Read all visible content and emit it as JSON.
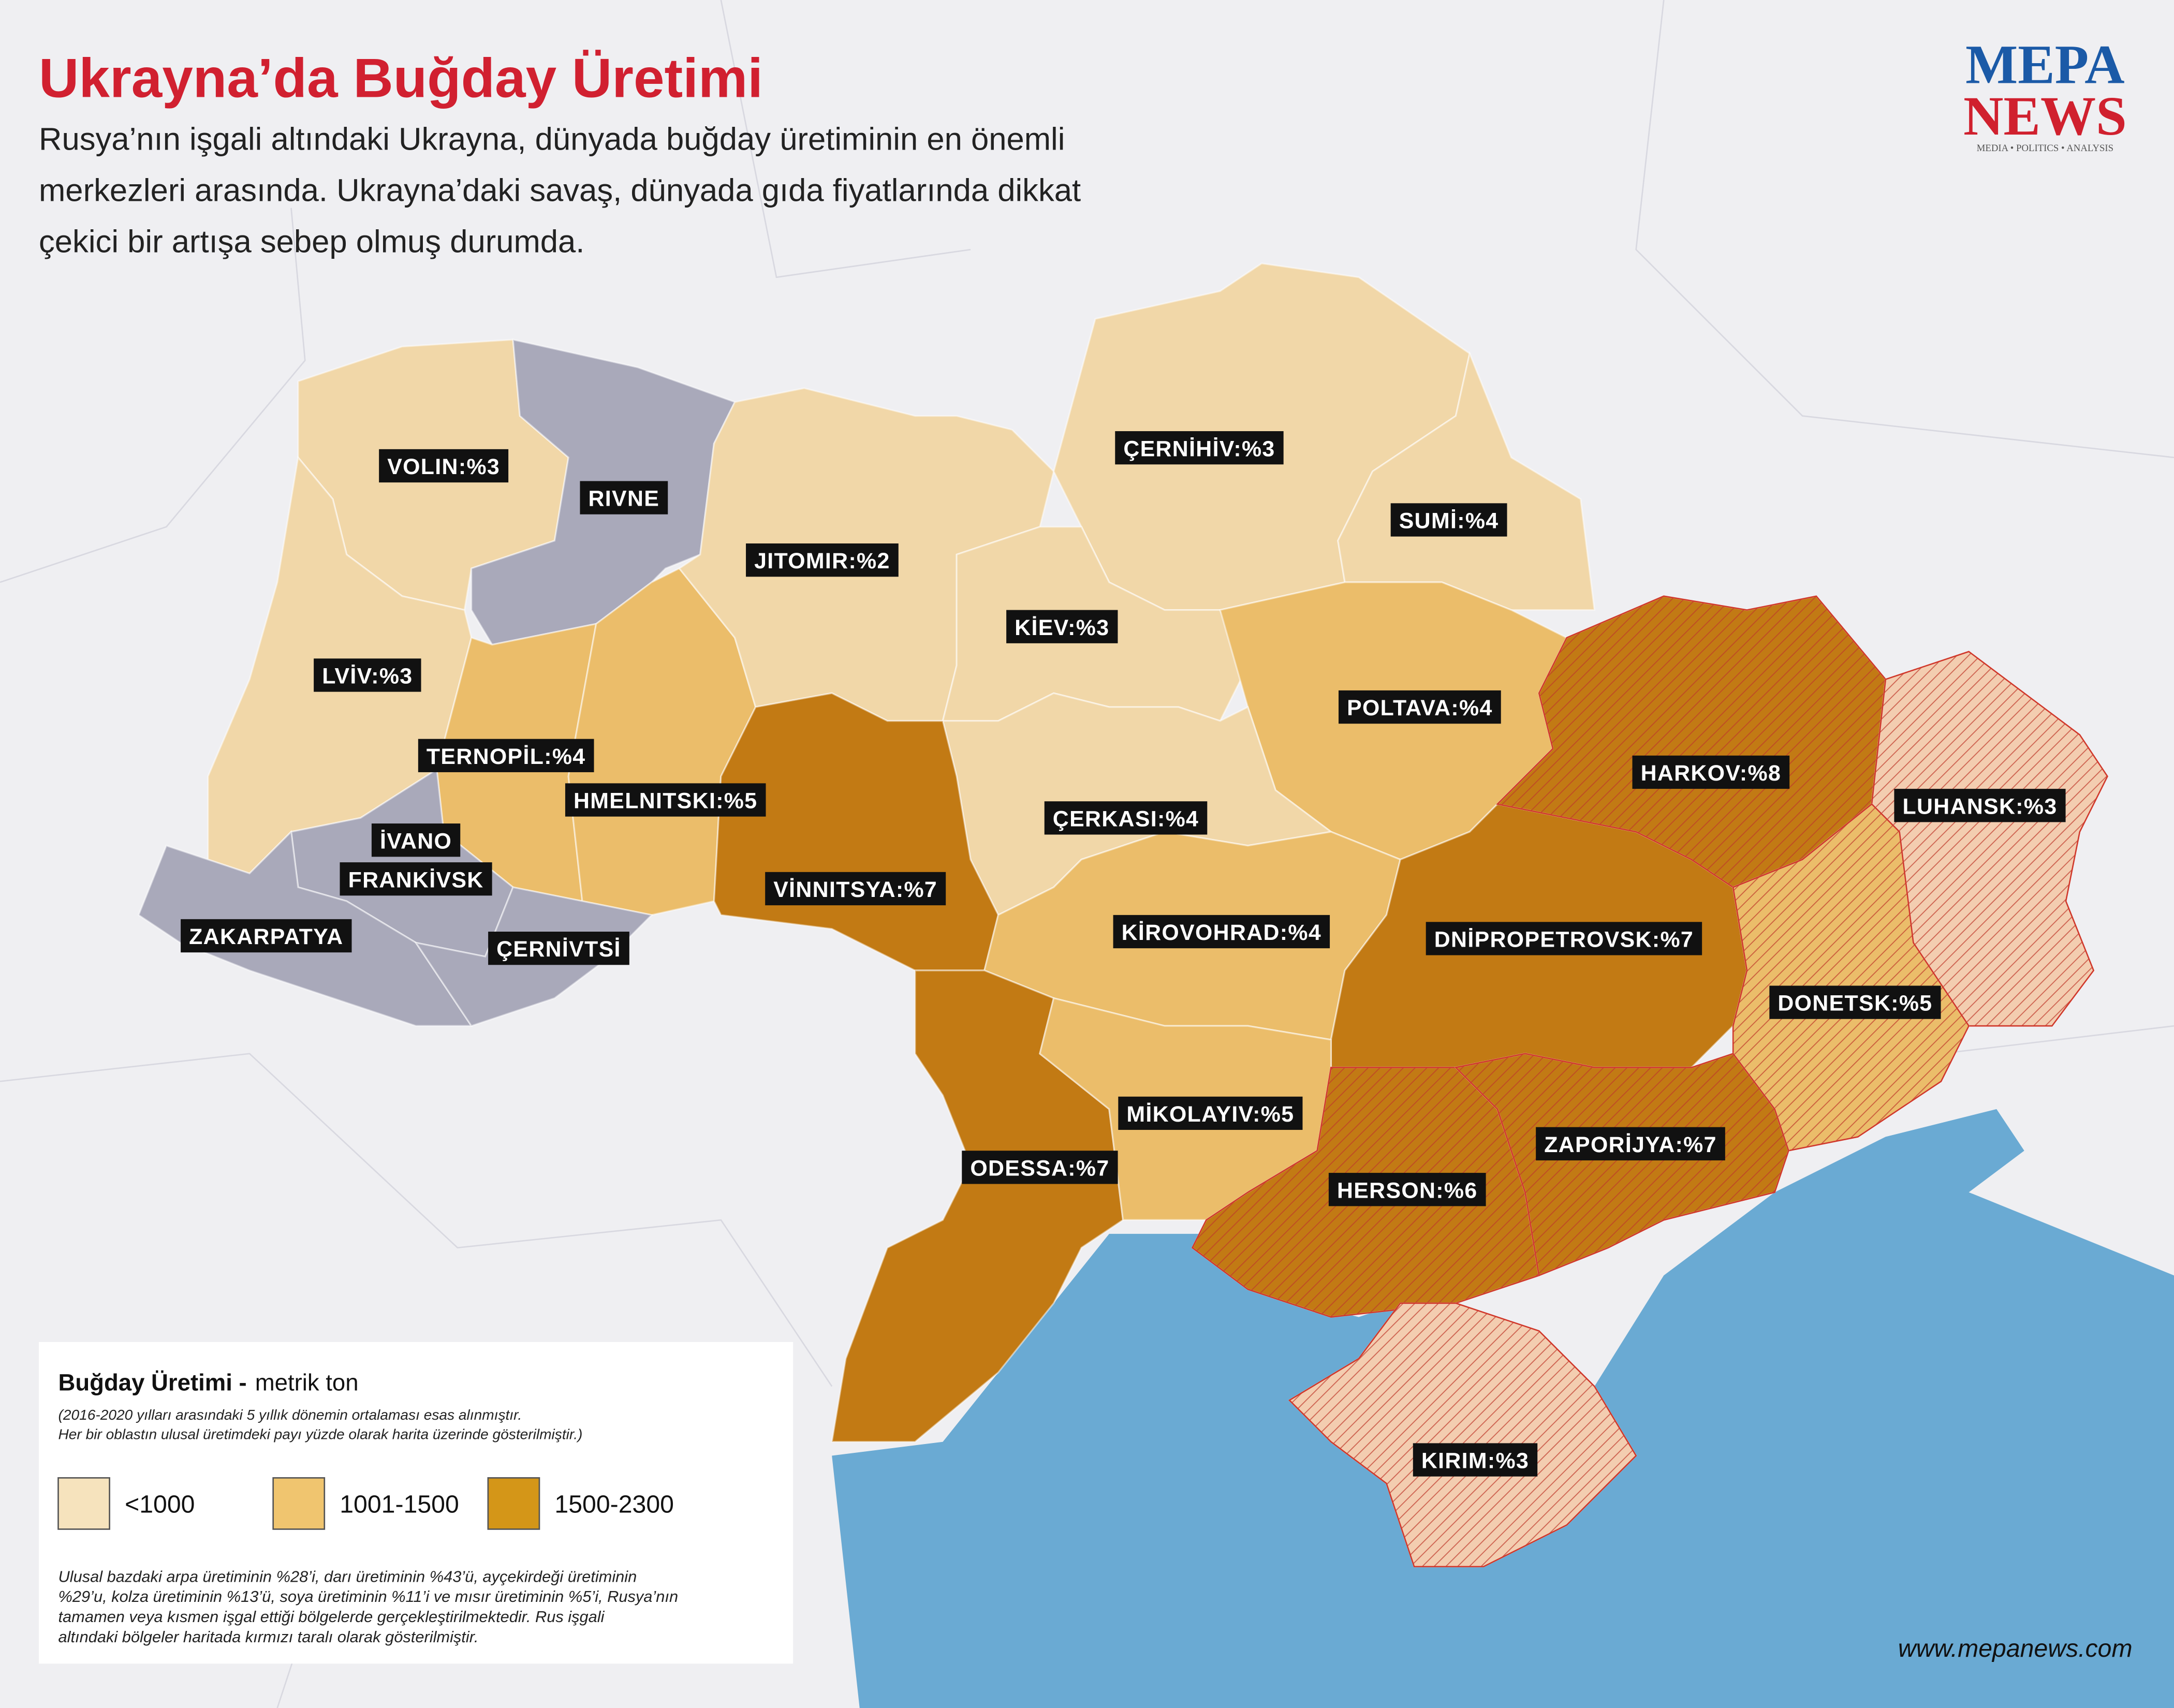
{
  "header": {
    "title": "Ukrayna’da Buğday Üretimi",
    "subtitle": [
      "Rusya’nın işgali altındaki Ukrayna, dünyada buğday üretiminin en önemli",
      "merkezleri arasında. Ukrayna’daki savaş, dünyada gıda fiyatlarında dikkat",
      "çekici bir artışa sebep olmuş durumda."
    ]
  },
  "logo": {
    "top": "MEPA",
    "bottom": "NEWS",
    "tagline": "MEDIA • POLITICS • ANALYSIS"
  },
  "regions": [
    {
      "label": "VOLIN:%3",
      "color": "#f1d7a8",
      "occupied": false
    },
    {
      "label": "RIVNE",
      "color": "#a9a9ba",
      "occupied": false
    },
    {
      "label": "LVİV:%3",
      "color": "#f1d7a8",
      "occupied": false
    },
    {
      "label": "TERNOPİL:%4",
      "color": "#ebbd6a",
      "occupied": false
    },
    {
      "label": "HMELNITSKI:%5",
      "color": "#ebbd6a",
      "occupied": false
    },
    {
      "label": [
        "İVANO",
        "FRANKİVSK"
      ],
      "color": "#a9a9ba",
      "occupied": false
    },
    {
      "label": "ZAKARPATYA",
      "color": "#a9a9ba",
      "occupied": false
    },
    {
      "label": "ÇERNİVTSİ",
      "color": "#a9a9ba",
      "occupied": false
    },
    {
      "label": "JITOMIR:%2",
      "color": "#f1d7a8",
      "occupied": false
    },
    {
      "label": "ÇERNİHİV:%3",
      "color": "#f1d7a8",
      "occupied": false
    },
    {
      "label": "SUMİ:%4",
      "color": "#f1d7a8",
      "occupied": false
    },
    {
      "label": "KİEV:%3",
      "color": "#f1d7a8",
      "occupied": false
    },
    {
      "label": "POLTAVA:%4",
      "color": "#ebbd6a",
      "occupied": false
    },
    {
      "label": "ÇERKASI:%4",
      "color": "#f1d7a8",
      "occupied": false
    },
    {
      "label": "VİNNITSYA:%7",
      "color": "#c27a14",
      "occupied": false
    },
    {
      "label": "KİROVOHRAD:%4",
      "color": "#ebbd6a",
      "occupied": false
    },
    {
      "label": "DNİPROPETROVSK:%7",
      "color": "#c27a14",
      "occupied": false
    },
    {
      "label": "HARKOV:%8",
      "color": "#c27a14",
      "occupied": true
    },
    {
      "label": "LUHANSK:%3",
      "color": "#f3cdb0",
      "occupied": true
    },
    {
      "label": "DONETSK:%5",
      "color": "#ebbd6a",
      "occupied": true
    },
    {
      "label": "ODESSA:%7",
      "color": "#c27a14",
      "occupied": false
    },
    {
      "label": "MİKOLAYIV:%5",
      "color": "#ebbd6a",
      "occupied": false
    },
    {
      "label": "HERSON:%6",
      "color": "#c27a14",
      "occupied": true
    },
    {
      "label": "ZAPORİJYA:%7",
      "color": "#c27a14",
      "occupied": true
    },
    {
      "label": "KIRIM:%3",
      "color": "#f3cdb0",
      "occupied": true
    }
  ],
  "legend": {
    "title": "Buğday Üretimi -",
    "unit": "metrik ton",
    "note": [
      "(2016-2020 yılları arasındaki 5 yıllık dönemin ortalaması esas alınmıştır.",
      "Her bir oblastın ulusal üretimdeki payı yüzde olarak harita üzerinde gösterilmiştir.)"
    ],
    "items": [
      {
        "label": "<1000",
        "color": "#f6e3bd"
      },
      {
        "label": "1001-1500",
        "color": "#f0c56f"
      },
      {
        "label": "1500-2300",
        "color": "#d49618"
      }
    ],
    "footnote": [
      "Ulusal bazdaki arpa üretiminin %28’i, darı üretiminin %43’ü, ayçekirdeği üretiminin",
      "%29’u, kolza üretiminin %13’ü, soya üretiminin %11’i ve mısır üretiminin %5’i, Rusya’nın",
      "tamamen veya kısmen işgal ettiği bölgelerde gerçekleştirilmektedir. Rus işgali",
      "altındaki bölgeler haritada kırmızı taralı olarak gösterilmiştir."
    ]
  },
  "website": "www.mepanews.com"
}
